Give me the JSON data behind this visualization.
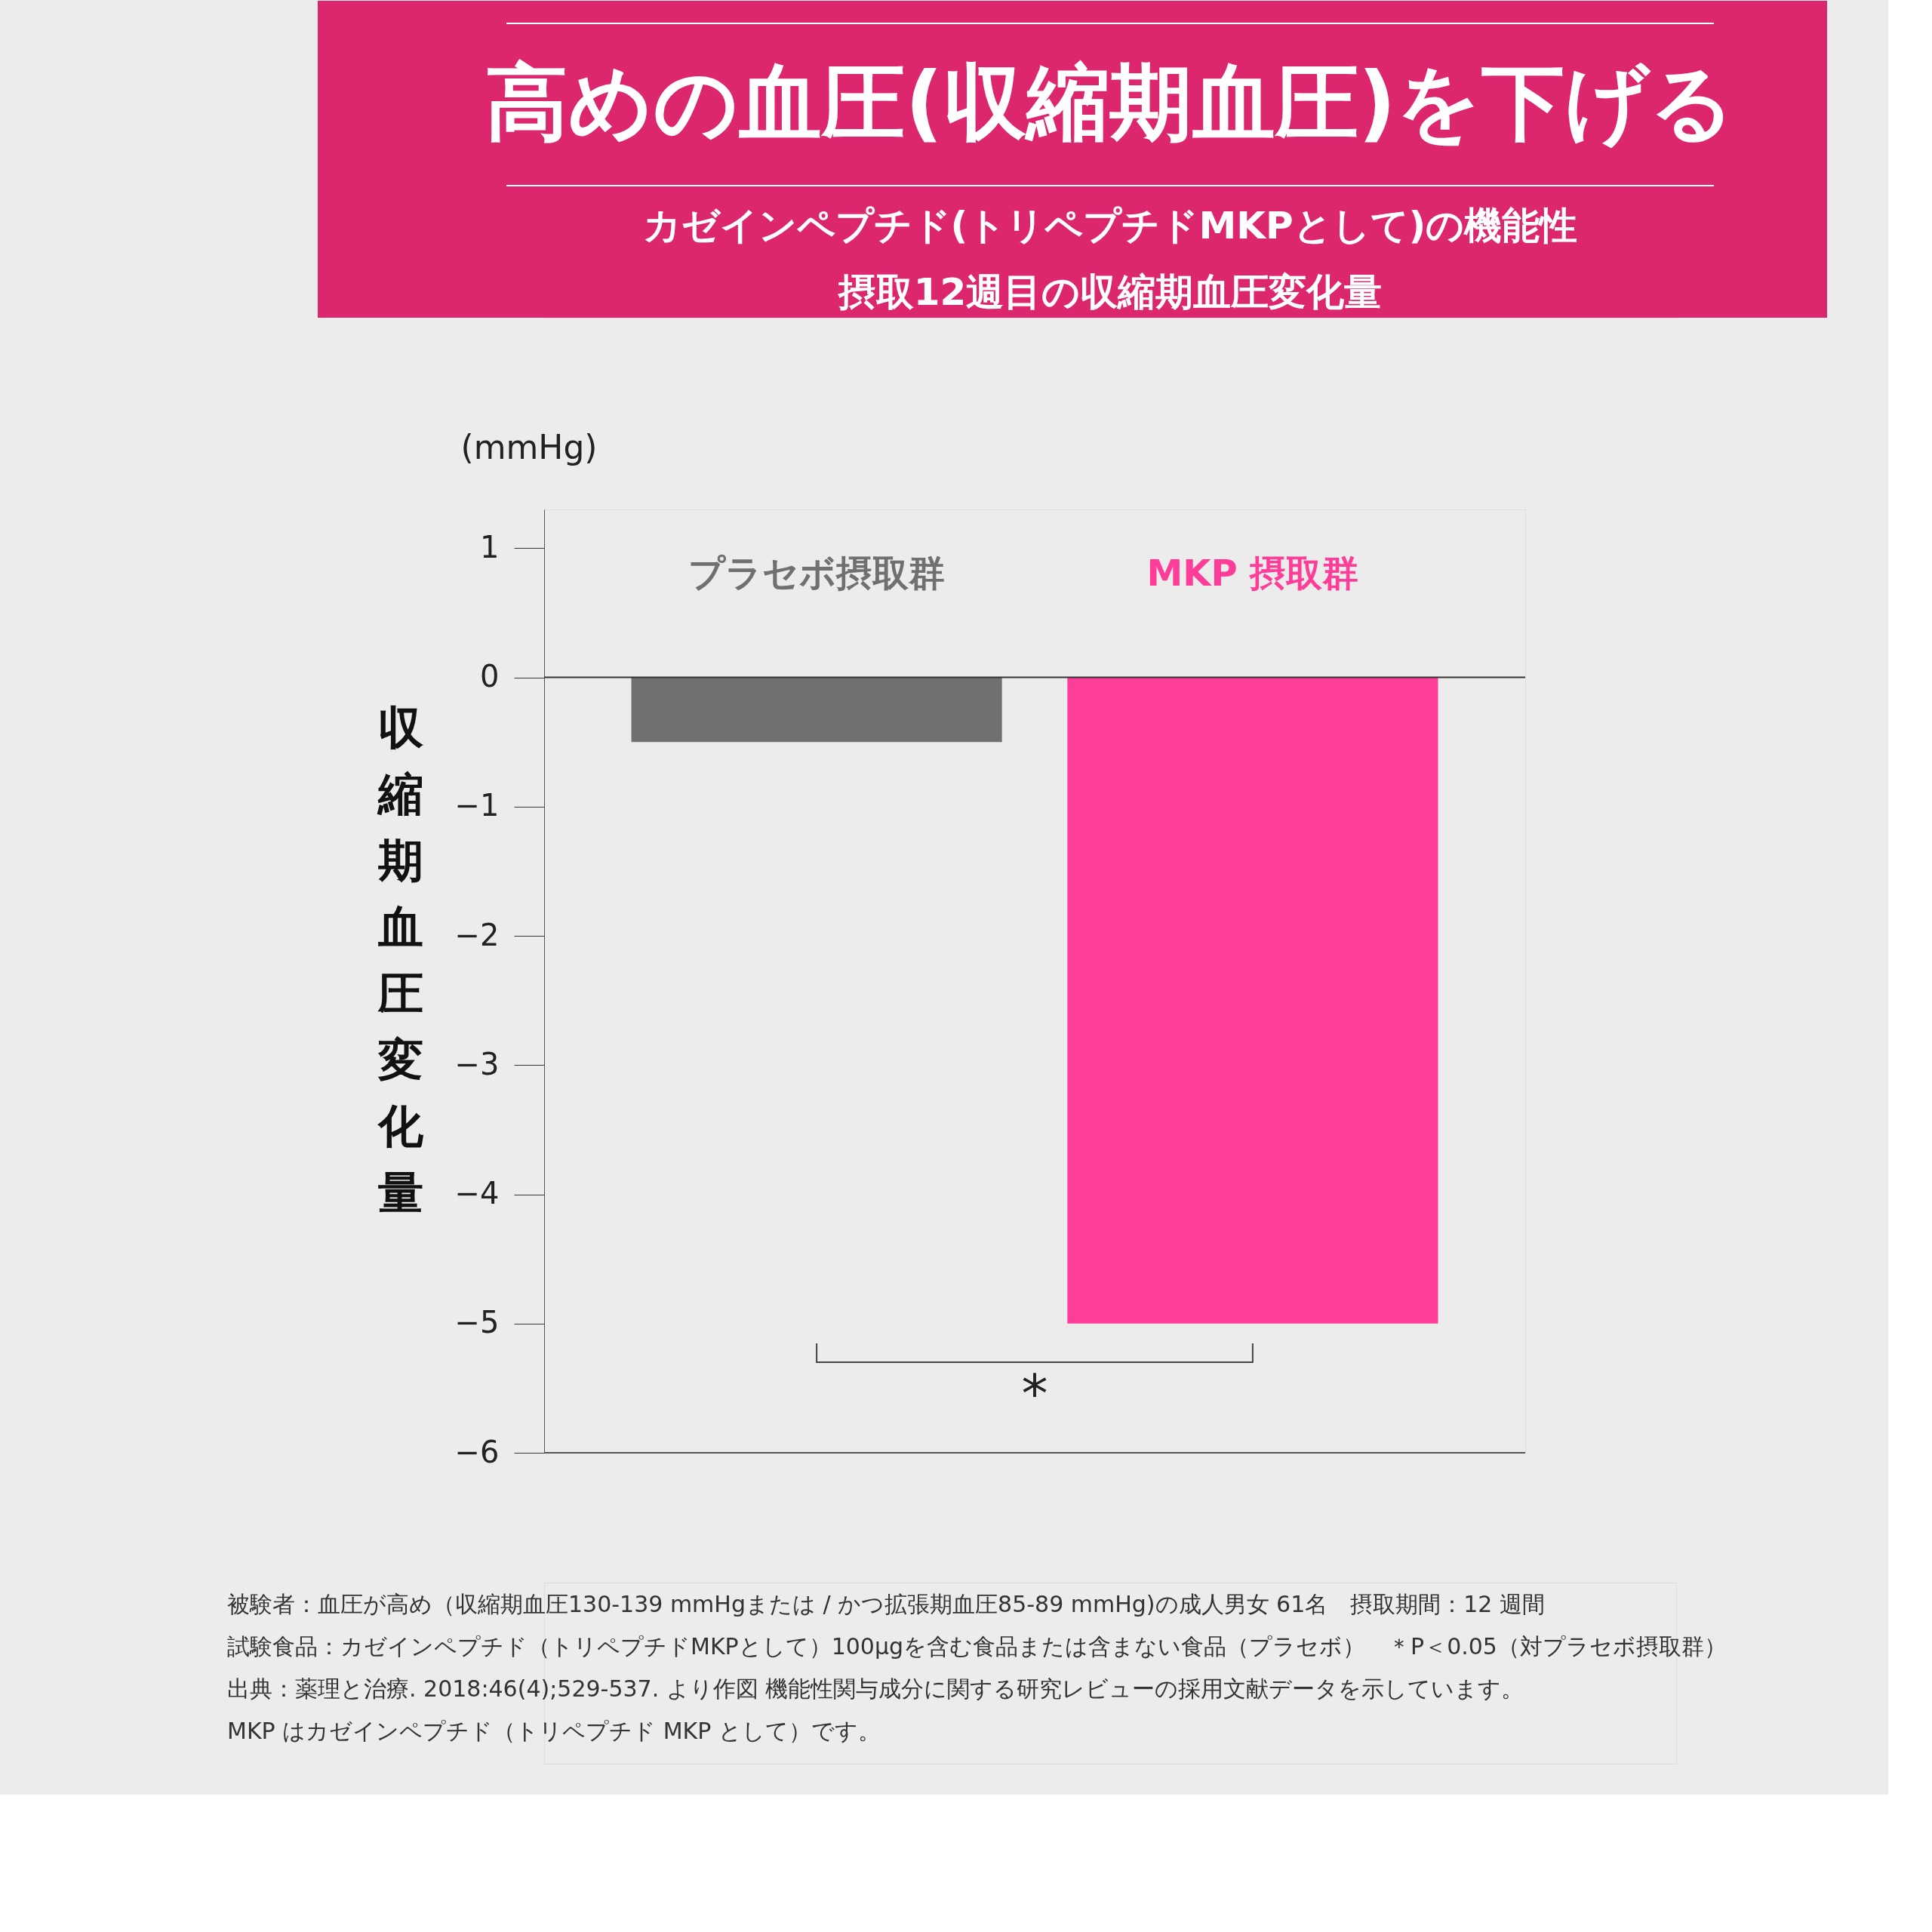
{
  "chart_data": {
    "type": "bar",
    "title": "高めの血圧(収縮期血圧)を下げる",
    "subtitle": [
      "カゼインペプチド(トリペプチドMKPとして)の機能性",
      "摂取12週目の収縮期血圧変化量"
    ],
    "categories": [
      "プラセボ摂取群",
      "MKP 摂取群"
    ],
    "values": [
      -0.5,
      -5.0
    ],
    "colors": [
      "#717071",
      "#fd3d97"
    ],
    "ylabel": "収縮期血圧変化量",
    "ylim": [
      -6,
      1.3
    ],
    "yticks": [
      -6,
      -5,
      -4,
      -3,
      -2,
      -1,
      0,
      1
    ],
    "ref_lines": [
      {
        "axis": "y",
        "value": 0,
        "color": "#333333"
      }
    ],
    "grid": false,
    "annotations": [
      "(mmHg)",
      "*",
      "被験者：血圧が高め（収縮期血圧130-139 mmHgまたは / かつ拡張期血圧85-89 mmHg)の成人男女 61名　摂取期間：12 週間",
      "試験食品：カゼインペプチド（トリペプチドMKPとして）100μgを含む食品または含まない食品（プラセボ）　＊P＜0.05（対プラセボ摂取群）",
      "出典：薬理と治療. 2018:46(4);529-537. より作図 機能性関与成分に関する研究レビューの採用文献データを示しています。",
      "MKP はカゼインペプチド（トリペプチド MKP として）です。"
    ]
  }
}
